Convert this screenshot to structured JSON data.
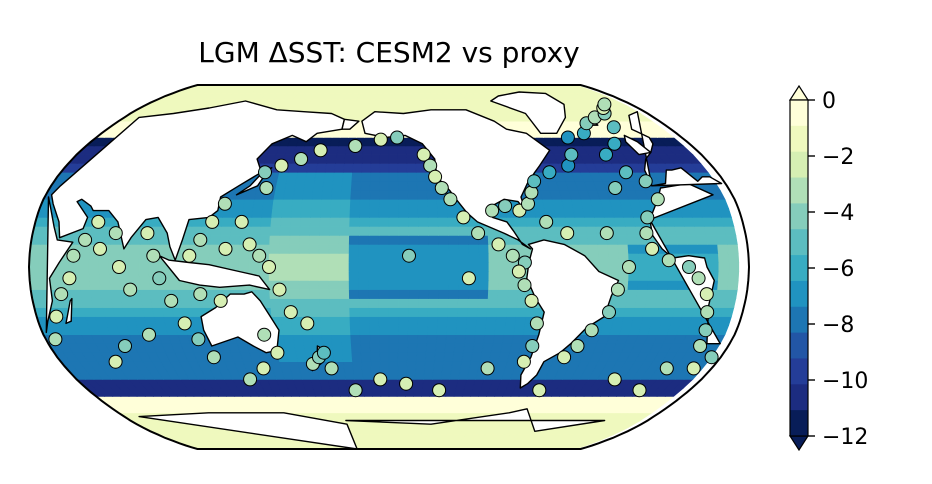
{
  "title": "LGM ΔSST: CESM2 vs proxy",
  "colorbar": {
    "min": -12,
    "max": 0,
    "step": 1,
    "extend": "both",
    "ticks": [
      0,
      -2,
      -4,
      -6,
      -8,
      -10,
      -12
    ],
    "tick_labels": [
      "0",
      "−2",
      "−4",
      "−6",
      "−8",
      "−10",
      "−12"
    ],
    "colors": [
      "#081d58",
      "#1c2c80",
      "#243d98",
      "#2256a6",
      "#1d76b3",
      "#2093c0",
      "#38acc2",
      "#5cbdc0",
      "#85cdbb",
      "#b0dfb7",
      "#d6efb3",
      "#eff9be",
      "#ffffd9"
    ],
    "under_color": "#081d58",
    "over_color": "#ffffd9"
  },
  "colors": {
    "land": "#ffffff",
    "coastline": "#000000",
    "marker_edge": "#000000"
  },
  "chart_data": {
    "type": "map",
    "projection": "Robinson",
    "field": "SST anomaly (LGM minus preindustrial), CESM2, filled contours",
    "colormap": "YlGnBu_r",
    "value_range": [
      -12,
      0
    ],
    "proxy_points": [
      {
        "lon": 168,
        "lat": -43,
        "v": -3
      },
      {
        "lon": 172,
        "lat": -40,
        "v": -4
      },
      {
        "lon": 175,
        "lat": -38,
        "v": -5
      },
      {
        "lon": 178,
        "lat": -45,
        "v": -3
      },
      {
        "lon": 168,
        "lat": -25,
        "v": -2
      },
      {
        "lon": 160,
        "lat": -20,
        "v": -2
      },
      {
        "lon": 155,
        "lat": -10,
        "v": -2
      },
      {
        "lon": 150,
        "lat": 0,
        "v": -2
      },
      {
        "lon": 145,
        "lat": 5,
        "v": -3
      },
      {
        "lon": 140,
        "lat": 10,
        "v": -2
      },
      {
        "lon": 135,
        "lat": 20,
        "v": -2
      },
      {
        "lon": 145,
        "lat": 35,
        "v": -3
      },
      {
        "lon": 142,
        "lat": 42,
        "v": -4
      },
      {
        "lon": 150,
        "lat": 45,
        "v": -2
      },
      {
        "lon": 160,
        "lat": 48,
        "v": -3
      },
      {
        "lon": 170,
        "lat": 52,
        "v": -2
      },
      {
        "lon": -170,
        "lat": 54,
        "v": -3
      },
      {
        "lon": -155,
        "lat": 57,
        "v": -2
      },
      {
        "lon": -145,
        "lat": 58,
        "v": -4
      },
      {
        "lon": -130,
        "lat": 50,
        "v": -2
      },
      {
        "lon": -127,
        "lat": 45,
        "v": -3
      },
      {
        "lon": -125,
        "lat": 40,
        "v": -2
      },
      {
        "lon": -122,
        "lat": 35,
        "v": -3
      },
      {
        "lon": -118,
        "lat": 30,
        "v": -3
      },
      {
        "lon": -112,
        "lat": 22,
        "v": -2
      },
      {
        "lon": -105,
        "lat": 15,
        "v": -3
      },
      {
        "lon": -95,
        "lat": 10,
        "v": -2
      },
      {
        "lon": -88,
        "lat": 5,
        "v": -3
      },
      {
        "lon": -82,
        "lat": 2,
        "v": -4
      },
      {
        "lon": -85,
        "lat": -2,
        "v": -2
      },
      {
        "lon": -82,
        "lat": -8,
        "v": -3
      },
      {
        "lon": -78,
        "lat": -15,
        "v": -2
      },
      {
        "lon": -74,
        "lat": -25,
        "v": -3
      },
      {
        "lon": -74,
        "lat": -35,
        "v": -4
      },
      {
        "lon": -76,
        "lat": -42,
        "v": -2
      },
      {
        "lon": -110,
        "lat": -5,
        "v": -2
      },
      {
        "lon": -140,
        "lat": 5,
        "v": -4
      },
      {
        "lon": -95,
        "lat": -45,
        "v": -3
      },
      {
        "lon": -120,
        "lat": -55,
        "v": -2
      },
      {
        "lon": -140,
        "lat": -52,
        "v": -2
      },
      {
        "lon": -155,
        "lat": -50,
        "v": -2
      },
      {
        "lon": -170,
        "lat": -55,
        "v": -3
      },
      {
        "lon": -97,
        "lat": 25,
        "v": -3
      },
      {
        "lon": -90,
        "lat": 27,
        "v": -4
      },
      {
        "lon": -83,
        "lat": 25,
        "v": -2
      },
      {
        "lon": -78,
        "lat": 28,
        "v": -3
      },
      {
        "lon": -75,
        "lat": 33,
        "v": -3
      },
      {
        "lon": -72,
        "lat": 38,
        "v": -5
      },
      {
        "lon": -62,
        "lat": 42,
        "v": -6
      },
      {
        "lon": -50,
        "lat": 45,
        "v": -7
      },
      {
        "lon": -45,
        "lat": 50,
        "v": -5
      },
      {
        "lon": -40,
        "lat": 58,
        "v": -7
      },
      {
        "lon": -28,
        "lat": 60,
        "v": -6
      },
      {
        "lon": -20,
        "lat": 65,
        "v": -4
      },
      {
        "lon": -10,
        "lat": 68,
        "v": -3
      },
      {
        "lon": 0,
        "lat": 70,
        "v": -4
      },
      {
        "lon": 5,
        "lat": 73,
        "v": -2
      },
      {
        "lon": 10,
        "lat": 75,
        "v": -3
      },
      {
        "lon": -5,
        "lat": 63,
        "v": -5
      },
      {
        "lon": -15,
        "lat": 55,
        "v": -6
      },
      {
        "lon": -25,
        "lat": 50,
        "v": -6
      },
      {
        "lon": -20,
        "lat": 42,
        "v": -5
      },
      {
        "lon": -12,
        "lat": 38,
        "v": -4
      },
      {
        "lon": -10,
        "lat": 30,
        "v": -3
      },
      {
        "lon": -18,
        "lat": 22,
        "v": -4
      },
      {
        "lon": -20,
        "lat": 15,
        "v": -3
      },
      {
        "lon": -18,
        "lat": 8,
        "v": -2
      },
      {
        "lon": -10,
        "lat": 3,
        "v": -3
      },
      {
        "lon": 0,
        "lat": 0,
        "v": -4
      },
      {
        "lon": 5,
        "lat": -5,
        "v": -3
      },
      {
        "lon": 10,
        "lat": -12,
        "v": -2
      },
      {
        "lon": 12,
        "lat": -20,
        "v": -3
      },
      {
        "lon": 14,
        "lat": -28,
        "v": -4
      },
      {
        "lon": 15,
        "lat": -35,
        "v": -3
      },
      {
        "lon": -30,
        "lat": 0,
        "v": -3
      },
      {
        "lon": -35,
        "lat": -10,
        "v": -3
      },
      {
        "lon": -38,
        "lat": -20,
        "v": -4
      },
      {
        "lon": -45,
        "lat": -28,
        "v": -3
      },
      {
        "lon": -50,
        "lat": -35,
        "v": -3
      },
      {
        "lon": -55,
        "lat": -40,
        "v": -2
      },
      {
        "lon": -40,
        "lat": 15,
        "v": -3
      },
      {
        "lon": -60,
        "lat": 15,
        "v": -2
      },
      {
        "lon": -70,
        "lat": 20,
        "v": -3
      },
      {
        "lon": -30,
        "lat": 35,
        "v": -4
      },
      {
        "lon": -60,
        "lat": -55,
        "v": -2
      },
      {
        "lon": -20,
        "lat": -50,
        "v": -2
      },
      {
        "lon": 0,
        "lat": -55,
        "v": -2
      },
      {
        "lon": 5,
        "lat": -45,
        "v": -3
      },
      {
        "lon": 20,
        "lat": -45,
        "v": -2
      },
      {
        "lon": 25,
        "lat": -40,
        "v": -4
      },
      {
        "lon": 35,
        "lat": -32,
        "v": -3
      },
      {
        "lon": 40,
        "lat": -22,
        "v": -2
      },
      {
        "lon": 45,
        "lat": -12,
        "v": -3
      },
      {
        "lon": 50,
        "lat": -5,
        "v": -2
      },
      {
        "lon": 52,
        "lat": 5,
        "v": -3
      },
      {
        "lon": 57,
        "lat": 12,
        "v": -3
      },
      {
        "lon": 62,
        "lat": 20,
        "v": -2
      },
      {
        "lon": 65,
        "lat": 8,
        "v": -2
      },
      {
        "lon": 72,
        "lat": 15,
        "v": -3
      },
      {
        "lon": 75,
        "lat": 0,
        "v": -2
      },
      {
        "lon": 80,
        "lat": -10,
        "v": -3
      },
      {
        "lon": 88,
        "lat": 15,
        "v": -2
      },
      {
        "lon": 92,
        "lat": 5,
        "v": -3
      },
      {
        "lon": 95,
        "lat": -5,
        "v": -4
      },
      {
        "lon": 100,
        "lat": -15,
        "v": -3
      },
      {
        "lon": 105,
        "lat": -25,
        "v": -2
      },
      {
        "lon": 110,
        "lat": -32,
        "v": -4
      },
      {
        "lon": 115,
        "lat": -40,
        "v": -3
      },
      {
        "lon": 70,
        "lat": -35,
        "v": -4
      },
      {
        "lon": 60,
        "lat": -42,
        "v": -2
      },
      {
        "lon": 85,
        "lat": -30,
        "v": -3
      },
      {
        "lon": 110,
        "lat": 5,
        "v": -2
      },
      {
        "lon": 115,
        "lat": 12,
        "v": -3
      },
      {
        "lon": 120,
        "lat": 20,
        "v": -2
      },
      {
        "lon": 125,
        "lat": 28,
        "v": -3
      },
      {
        "lon": 128,
        "lat": 8,
        "v": -2
      },
      {
        "lon": 115,
        "lat": -12,
        "v": -3
      },
      {
        "lon": 125,
        "lat": -15,
        "v": -2
      },
      {
        "lon": 145,
        "lat": -30,
        "v": -3
      },
      {
        "lon": 150,
        "lat": -38,
        "v": -2
      },
      {
        "lon": 140,
        "lat": -45,
        "v": -2
      },
      {
        "lon": 130,
        "lat": -50,
        "v": -3
      }
    ]
  }
}
